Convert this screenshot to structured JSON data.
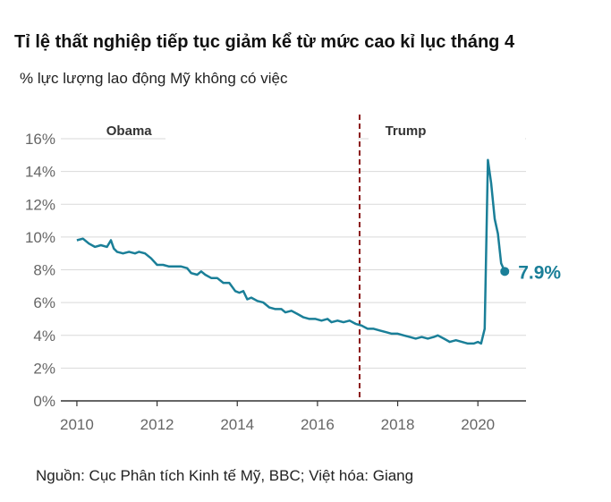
{
  "title": "Tỉ lệ thất nghiệp tiếp tục giảm kể từ mức cao kỉ lục tháng 4",
  "subtitle": "% lực lượng lao động Mỹ không có việc",
  "source": "Nguồn: Cục Phân tích Kinh tế Mỹ, BBC; Việt hóa: Giang",
  "colors": {
    "line": "#1a7f98",
    "divider": "#8b1a1a",
    "grid": "#d9d9d9",
    "axis": "#333333",
    "label_band": "#ffffff"
  },
  "chart_data": {
    "type": "line",
    "title": "Tỉ lệ thất nghiệp tiếp tục giảm kể từ mức cao kỉ lục tháng 4",
    "subtitle": "% lực lượng lao động Mỹ không có việc",
    "xlabel": "",
    "ylabel": "",
    "xlim": [
      2009.6,
      2021.2
    ],
    "ylim": [
      0,
      16
    ],
    "grid": true,
    "y_ticks": [
      0,
      2,
      4,
      6,
      8,
      10,
      12,
      14,
      16
    ],
    "y_tick_labels": [
      "0%",
      "2%",
      "4%",
      "6%",
      "8%",
      "10%",
      "12%",
      "14%",
      "16%"
    ],
    "x_ticks": [
      2010,
      2012,
      2014,
      2016,
      2018,
      2020
    ],
    "x_tick_labels": [
      "2010",
      "2012",
      "2014",
      "2016",
      "2018",
      "2020"
    ],
    "annotations": [
      {
        "text": "Obama",
        "x": 2011.3
      },
      {
        "text": "Trump",
        "x": 2018.2
      }
    ],
    "divider_x": 2017.05,
    "end_label": "7.9%",
    "series": [
      {
        "x": [
          2010.0,
          2010.15,
          2010.3,
          2010.45,
          2010.6,
          2010.75,
          2010.85,
          2010.92,
          2011.0,
          2011.15,
          2011.3,
          2011.45,
          2011.55,
          2011.7,
          2011.85,
          2012.0,
          2012.15,
          2012.3,
          2012.45,
          2012.6,
          2012.75,
          2012.85,
          2013.0,
          2013.1,
          2013.2,
          2013.35,
          2013.5,
          2013.65,
          2013.8,
          2013.95,
          2014.05,
          2014.15,
          2014.25,
          2014.35,
          2014.5,
          2014.65,
          2014.8,
          2014.95,
          2015.1,
          2015.2,
          2015.35,
          2015.5,
          2015.65,
          2015.8,
          2015.95,
          2016.1,
          2016.25,
          2016.35,
          2016.5,
          2016.65,
          2016.8,
          2016.95,
          2017.1,
          2017.25,
          2017.4,
          2017.55,
          2017.7,
          2017.85,
          2018.0,
          2018.15,
          2018.3,
          2018.45,
          2018.6,
          2018.75,
          2018.9,
          2019.0,
          2019.15,
          2019.3,
          2019.45,
          2019.6,
          2019.75,
          2019.9,
          2020.0,
          2020.08,
          2020.17,
          2020.25,
          2020.33,
          2020.42,
          2020.5,
          2020.58,
          2020.67
        ],
        "values": [
          9.8,
          9.9,
          9.6,
          9.4,
          9.5,
          9.4,
          9.8,
          9.3,
          9.1,
          9.0,
          9.1,
          9.0,
          9.1,
          9.0,
          8.7,
          8.3,
          8.3,
          8.2,
          8.2,
          8.2,
          8.1,
          7.8,
          7.7,
          7.9,
          7.7,
          7.5,
          7.5,
          7.2,
          7.2,
          6.7,
          6.6,
          6.7,
          6.2,
          6.3,
          6.1,
          6.0,
          5.7,
          5.6,
          5.6,
          5.4,
          5.5,
          5.3,
          5.1,
          5.0,
          5.0,
          4.9,
          5.0,
          4.8,
          4.9,
          4.8,
          4.9,
          4.7,
          4.6,
          4.4,
          4.4,
          4.3,
          4.2,
          4.1,
          4.1,
          4.0,
          3.9,
          3.8,
          3.9,
          3.8,
          3.9,
          4.0,
          3.8,
          3.6,
          3.7,
          3.6,
          3.5,
          3.5,
          3.6,
          3.5,
          4.4,
          14.7,
          13.3,
          11.1,
          10.2,
          8.4,
          7.9
        ]
      }
    ]
  }
}
